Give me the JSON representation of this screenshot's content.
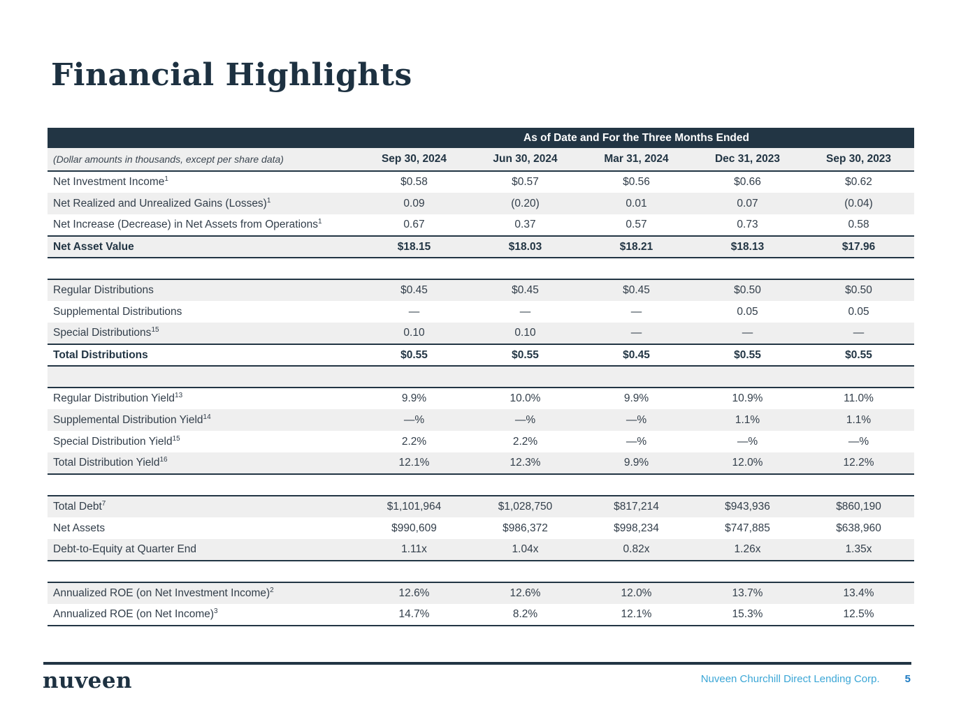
{
  "page": {
    "title": "Financial Highlights",
    "footer": {
      "logo": "nuveen",
      "company": "Nuveen Churchill Direct Lending Corp.",
      "page_number": "5"
    }
  },
  "table": {
    "banner": "As of Date and For the Three Months Ended",
    "note": "(Dollar amounts in thousands, except per share data)",
    "columns": [
      "Sep 30, 2024",
      "Jun 30, 2024",
      "Mar 31, 2024",
      "Dec 31, 2023",
      "Sep 30, 2023"
    ],
    "rows": [
      {
        "label": "Net Investment Income",
        "sup": "1",
        "shade": false,
        "values": [
          "$0.58",
          "$0.57",
          "$0.56",
          "$0.66",
          "$0.62"
        ]
      },
      {
        "label": "Net Realized and Unrealized Gains (Losses)",
        "sup": "1",
        "shade": true,
        "values": [
          "0.09",
          "(0.20)",
          "0.01",
          "0.07",
          "(0.04)"
        ]
      },
      {
        "label": "Net Increase (Decrease) in Net Assets from Operations",
        "sup": "1",
        "shade": false,
        "values": [
          "0.67",
          "0.37",
          "0.57",
          "0.73",
          "0.58"
        ]
      },
      {
        "label": "Net Asset Value",
        "shade": true,
        "bold": true,
        "rule_top": true,
        "rule_bottom": true,
        "values": [
          "$18.15",
          "$18.03",
          "$18.21",
          "$18.13",
          "$17.96"
        ]
      },
      {
        "spacer": true,
        "shade": false
      },
      {
        "label": "Regular Distributions",
        "shade": true,
        "rule_top": true,
        "values": [
          "$0.45",
          "$0.45",
          "$0.45",
          "$0.50",
          "$0.50"
        ]
      },
      {
        "label": "Supplemental Distributions",
        "shade": false,
        "values": [
          "—",
          "—",
          "—",
          "0.05",
          "0.05"
        ]
      },
      {
        "label": "Special Distributions",
        "sup": "15",
        "shade": true,
        "values": [
          "0.10",
          "0.10",
          "—",
          "—",
          "—"
        ]
      },
      {
        "label": "Total Distributions",
        "shade": false,
        "bold": true,
        "rule_top": true,
        "rule_bottom": true,
        "values": [
          "$0.55",
          "$0.55",
          "$0.45",
          "$0.55",
          "$0.55"
        ]
      },
      {
        "spacer": true,
        "shade": true,
        "rule_bottom": true
      },
      {
        "label": "Regular Distribution Yield",
        "sup": "13",
        "shade": false,
        "values": [
          "9.9%",
          "10.0%",
          "9.9%",
          "10.9%",
          "11.0%"
        ]
      },
      {
        "label": "Supplemental Distribution Yield",
        "sup": "14",
        "shade": true,
        "values": [
          "—%",
          "—%",
          "—%",
          "1.1%",
          "1.1%"
        ]
      },
      {
        "label": "Special Distribution Yield",
        "sup": "15",
        "shade": false,
        "values": [
          "2.2%",
          "2.2%",
          "—%",
          "—%",
          "—%"
        ]
      },
      {
        "label": "Total Distribution Yield",
        "sup": "16",
        "shade": true,
        "rule_bottom": true,
        "values": [
          "12.1%",
          "12.3%",
          "9.9%",
          "12.0%",
          "12.2%"
        ]
      },
      {
        "spacer": true,
        "shade": false
      },
      {
        "label": "Total Debt",
        "sup": "7",
        "shade": true,
        "rule_top": true,
        "values": [
          "$1,101,964",
          "$1,028,750",
          "$817,214",
          "$943,936",
          "$860,190"
        ]
      },
      {
        "label": "Net Assets",
        "shade": false,
        "values": [
          "$990,609",
          "$986,372",
          "$998,234",
          "$747,885",
          "$638,960"
        ]
      },
      {
        "label": "Debt-to-Equity at Quarter End",
        "shade": true,
        "rule_bottom": true,
        "values": [
          "1.11x",
          "1.04x",
          "0.82x",
          "1.26x",
          "1.35x"
        ]
      },
      {
        "spacer": true,
        "shade": false
      },
      {
        "label": "Annualized ROE (on Net Investment Income)",
        "sup": "2",
        "shade": true,
        "rule_top": true,
        "values": [
          "12.6%",
          "12.6%",
          "12.0%",
          "13.7%",
          "13.4%"
        ]
      },
      {
        "label": "Annualized ROE (on Net Income)",
        "sup": "3",
        "shade": false,
        "rule_bottom": true,
        "values": [
          "14.7%",
          "8.2%",
          "12.1%",
          "15.3%",
          "12.5%"
        ]
      }
    ]
  }
}
